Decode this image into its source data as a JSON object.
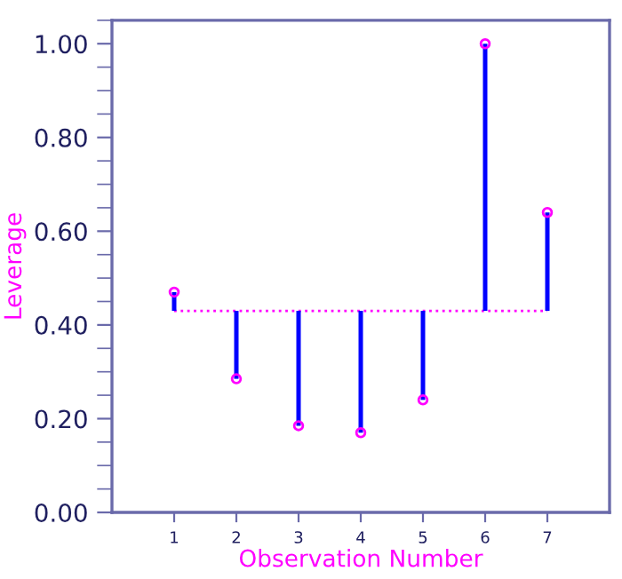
{
  "chart_data": {
    "type": "scatter",
    "xlabel": "Observation Number",
    "ylabel": "Leverage",
    "x": [
      1,
      2,
      3,
      4,
      5,
      6,
      7
    ],
    "series": [
      {
        "color": "#ff00ff",
        "values": [
          0.47,
          0.285,
          0.185,
          0.17,
          0.24,
          1.0,
          0.64
        ],
        "errors": [
          [
            0.43,
            0.47
          ],
          [
            0.285,
            0.43
          ],
          [
            0.185,
            0.43
          ],
          [
            0.17,
            0.43
          ],
          [
            0.24,
            0.43
          ],
          [
            0.43,
            1.0
          ],
          [
            0.43,
            0.64
          ]
        ]
      }
    ],
    "marker": "circle",
    "xlim": [
      0,
      8
    ],
    "xticks": [
      1,
      2,
      3,
      4,
      5,
      6,
      7
    ],
    "ylim": [
      0,
      1.05
    ],
    "yticks": [
      {
        "value": 0,
        "label": "0.00"
      },
      {
        "value": 0.2,
        "label": "0.20"
      },
      {
        "value": 0.4,
        "label": "0.40"
      },
      {
        "value": 0.6,
        "label": "0.60"
      },
      {
        "value": 0.8,
        "label": "0.80"
      },
      {
        "value": 1.0,
        "label": "1.00"
      }
    ],
    "ref_lines": [
      {
        "axis": "y",
        "value": 0.43,
        "color": "#ff00ff",
        "line_style": "dotted"
      }
    ],
    "grid": false
  }
}
